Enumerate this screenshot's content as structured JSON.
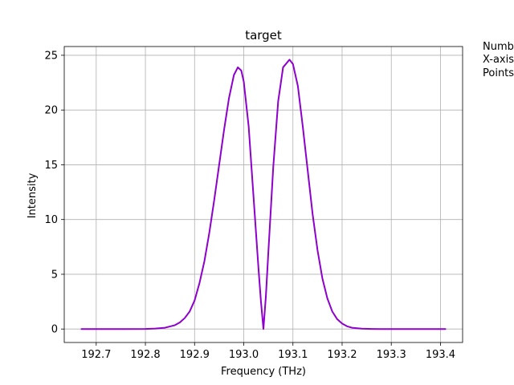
{
  "chart_data": {
    "type": "line",
    "title": "target",
    "xlabel": "Frequency (THz)",
    "ylabel": "Intensity",
    "xlim": [
      192.635,
      193.445
    ],
    "ylim": [
      -1.23,
      25.8
    ],
    "x_ticks": [
      192.7,
      192.8,
      192.9,
      193.0,
      193.1,
      193.2,
      193.3,
      193.4
    ],
    "x_tick_labels": [
      "192.7",
      "192.8",
      "192.9",
      "193.0",
      "193.1",
      "193.2",
      "193.3",
      "193.4"
    ],
    "y_ticks": [
      0,
      5,
      10,
      15,
      20,
      25
    ],
    "y_tick_labels": [
      "0",
      "5",
      "10",
      "15",
      "20",
      "25"
    ],
    "grid": true,
    "series": [
      {
        "color": "#8f00cc",
        "x": [
          192.67,
          192.7,
          192.75,
          192.8,
          192.82,
          192.84,
          192.86,
          192.87,
          192.88,
          192.89,
          192.9,
          192.91,
          192.92,
          192.93,
          192.94,
          192.95,
          192.96,
          192.97,
          192.98,
          192.988,
          192.995,
          193.0,
          193.01,
          193.02,
          193.03,
          193.035,
          193.04,
          193.045,
          193.05,
          193.06,
          193.07,
          193.08,
          193.093,
          193.1,
          193.11,
          193.12,
          193.13,
          193.14,
          193.15,
          193.16,
          193.17,
          193.18,
          193.19,
          193.2,
          193.21,
          193.22,
          193.24,
          193.26,
          193.28,
          193.3,
          193.35,
          193.41
        ],
        "y": [
          0,
          0,
          0,
          0.01,
          0.04,
          0.12,
          0.35,
          0.6,
          1.0,
          1.6,
          2.6,
          4.2,
          6.2,
          8.8,
          11.8,
          15.0,
          18.2,
          21.1,
          23.2,
          23.9,
          23.6,
          22.6,
          18.5,
          12.0,
          5.5,
          2.5,
          0,
          3.0,
          7.0,
          14.8,
          20.8,
          23.9,
          24.6,
          24.2,
          22.2,
          18.5,
          14.5,
          10.5,
          7.2,
          4.6,
          2.8,
          1.6,
          0.9,
          0.5,
          0.25,
          0.12,
          0.03,
          0.01,
          0,
          0,
          0,
          0
        ]
      }
    ]
  },
  "side_note": {
    "line1": "Numb",
    "line2": "X-axis",
    "line3": "Points"
  }
}
